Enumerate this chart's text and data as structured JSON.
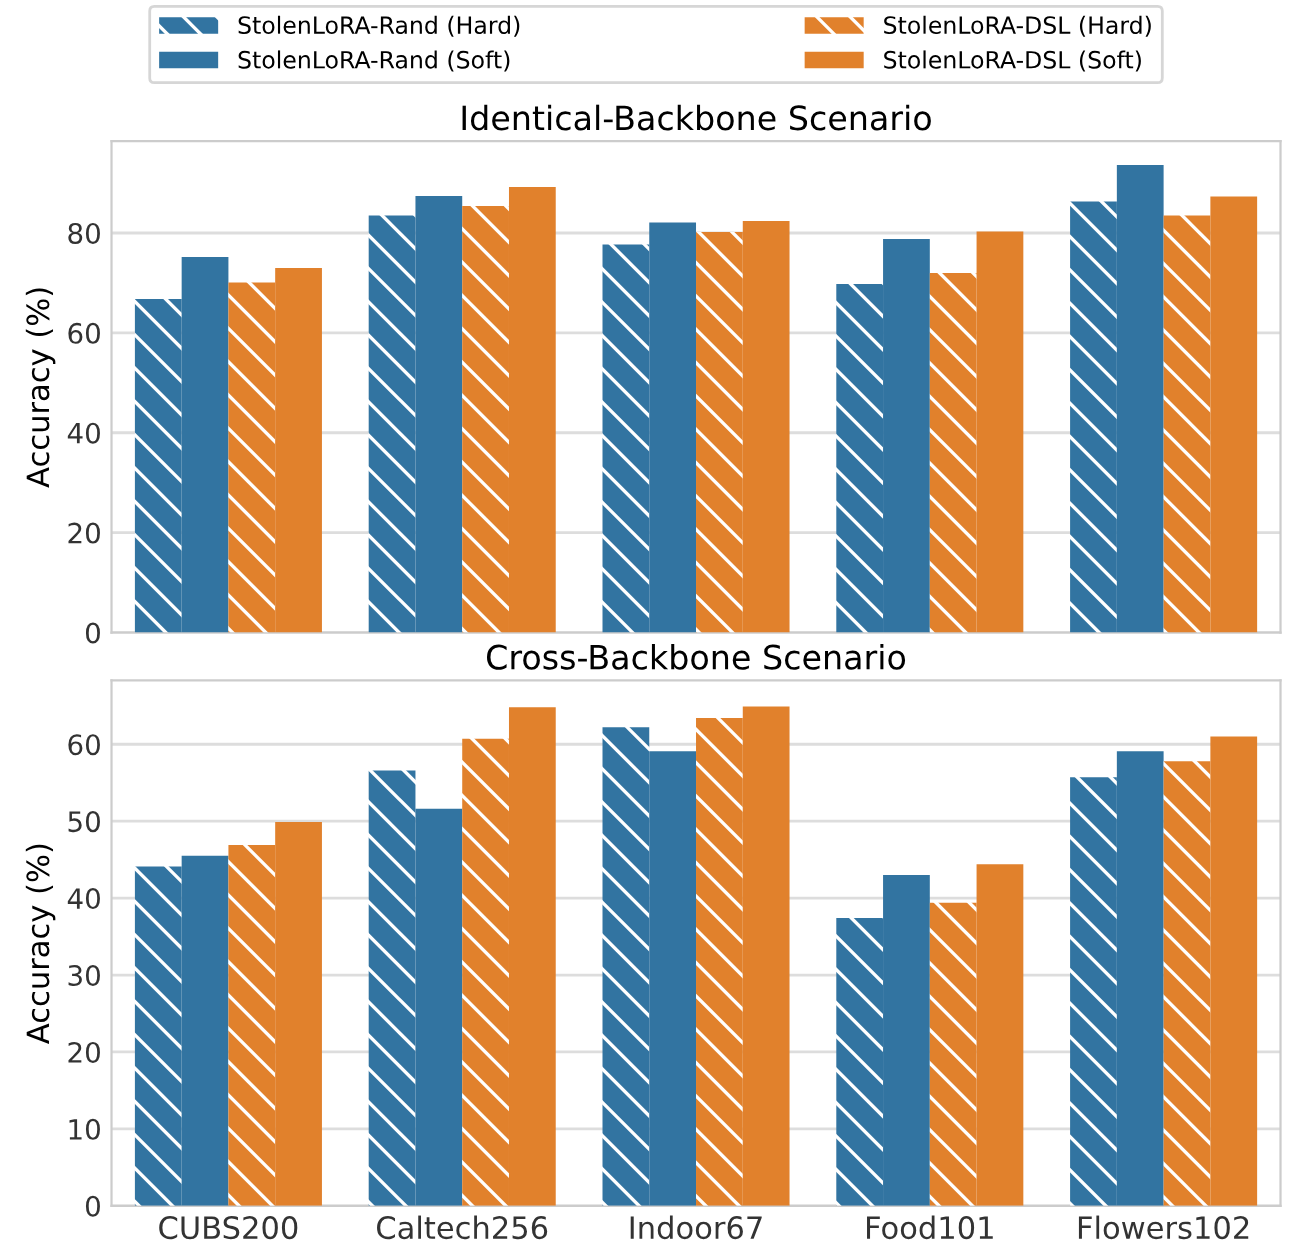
{
  "chart_data": [
    {
      "type": "bar",
      "title": "Identical-Backbone Scenario",
      "ylabel": "Accuracy (%)",
      "categories": [
        null,
        null,
        null,
        null,
        null
      ],
      "series": [
        {
          "name": "StolenLoRA-Rand (Hard)",
          "color": "#3274a1",
          "values": [
            66.8,
            83.5,
            77.7,
            69.8,
            86.3
          ]
        },
        {
          "name": "StolenLoRA-Rand (Soft)",
          "color": "#3274a1",
          "values": [
            75.2,
            87.4,
            82.1,
            78.8,
            93.6
          ]
        },
        {
          "name": "StolenLoRA-DSL (Hard)",
          "color": "#e1812c",
          "values": [
            70.1,
            85.4,
            80.2,
            72.0,
            83.5
          ]
        },
        {
          "name": "StolenLoRA-DSL (Soft)",
          "color": "#e1812c",
          "values": [
            73.0,
            89.2,
            82.4,
            80.3,
            87.3
          ]
        }
      ],
      "ylim": [
        0,
        98.4
      ],
      "yticks": [
        0,
        20,
        40,
        60,
        80
      ],
      "grid": "y",
      "legend": "top",
      "tick_labels": "y"
    },
    {
      "type": "bar",
      "title": "Cross-Backbone Scenario",
      "ylabel": "Accuracy (%)",
      "categories": [
        "CUBS200",
        "Caltech256",
        "Indoor67",
        "Food101",
        "Flowers102"
      ],
      "series": [
        {
          "color": "#3274a1",
          "values": [
            44.1,
            56.6,
            62.2,
            37.4,
            55.7
          ]
        },
        {
          "color": "#3274a1",
          "values": [
            45.5,
            51.6,
            59.1,
            43.0,
            59.1
          ]
        },
        {
          "color": "#e1812c",
          "values": [
            46.9,
            60.7,
            63.4,
            39.4,
            57.8
          ]
        },
        {
          "color": "#e1812c",
          "values": [
            49.9,
            64.8,
            64.9,
            44.4,
            61.0
          ]
        }
      ],
      "ylim": [
        0,
        68.3
      ],
      "yticks": [
        0,
        10,
        20,
        30,
        40,
        50,
        60
      ],
      "grid": "y"
    }
  ]
}
